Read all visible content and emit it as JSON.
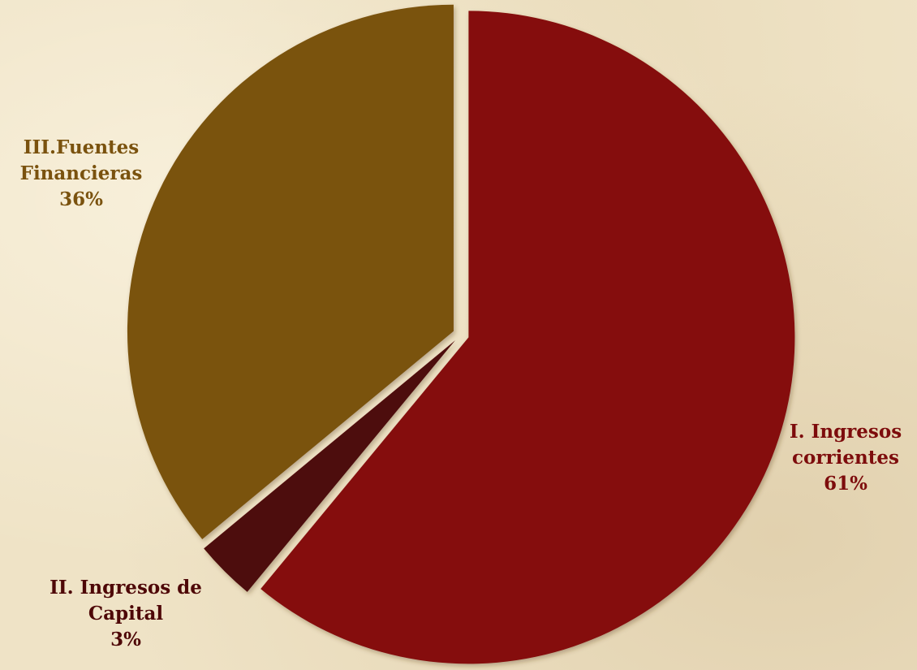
{
  "chart_data": {
    "type": "pie",
    "exploded": true,
    "start_angle_deg": 0,
    "direction": "clockwise",
    "slices": [
      {
        "label_line1": "I. Ingresos",
        "label_line2": "corrientes",
        "value": 61,
        "value_label": "61%",
        "color": "#850a0a"
      },
      {
        "label_line1": "II. Ingresos de",
        "label_line2": "Capital",
        "value": 3,
        "value_label": "3%",
        "color": "#4e0707"
      },
      {
        "label_line1": "III.Fuentes",
        "label_line2": "Financieras",
        "value": 36,
        "value_label": "36%",
        "color": "#7a520e"
      }
    ],
    "label_colors": [
      "#7d0c0c",
      "#4e0707",
      "#7a520e"
    ]
  }
}
